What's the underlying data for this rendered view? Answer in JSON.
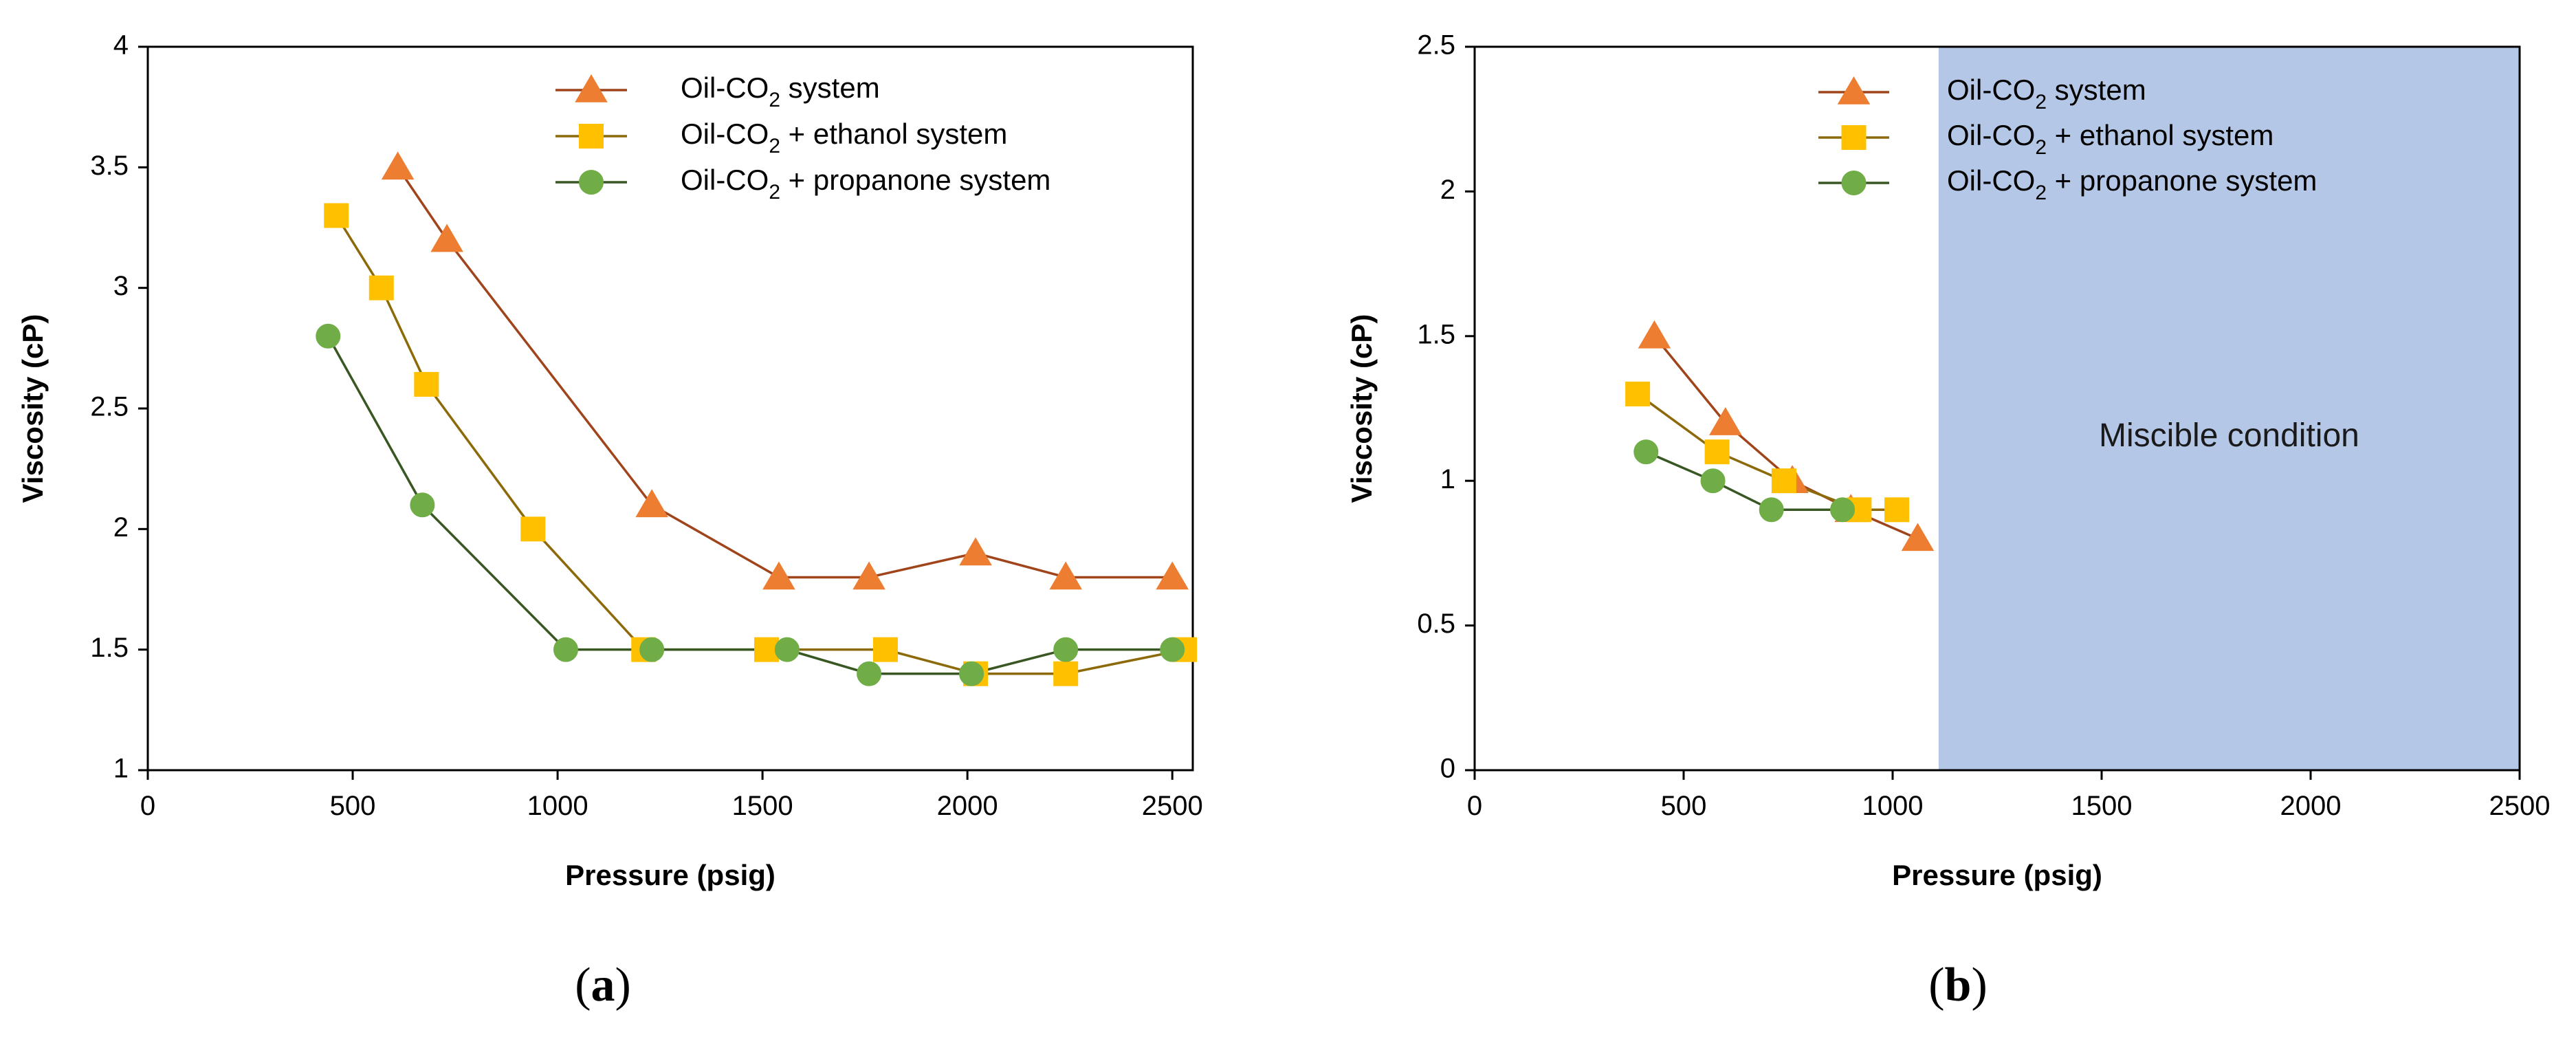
{
  "colors": {
    "co2": "#ED7D31",
    "co2_line": "#A0441B",
    "ethanol": "#FFC000",
    "ethanol_line": "#8C6A0A",
    "propanone": "#70AD47",
    "propanone_line": "#385723",
    "miscible_region": "#B4C7E7"
  },
  "chart_data": [
    {
      "type": "line",
      "panel": "(a)",
      "xlabel": "Pressure (psig)",
      "ylabel": "Viscosity (cP)",
      "xlim": [
        0,
        2550
      ],
      "ylim": [
        1,
        4
      ],
      "xticks": [
        0,
        500,
        1000,
        1500,
        2000,
        2500
      ],
      "yticks": [
        1,
        1.5,
        2,
        2.5,
        3,
        3.5,
        4
      ],
      "ytick_labels": [
        "1",
        "1.5",
        "2",
        "2.5",
        "3",
        "3.5",
        "4"
      ],
      "legend_position": "top-right",
      "series": [
        {
          "key": "co2",
          "name_prefix": "Oil-CO",
          "name_sub": "2",
          "name_suffix": " system",
          "marker": "triangle",
          "x": [
            610,
            730,
            1230,
            1540,
            1760,
            2020,
            2240,
            2500
          ],
          "y": [
            3.5,
            3.2,
            2.1,
            1.8,
            1.8,
            1.9,
            1.8,
            1.8
          ]
        },
        {
          "key": "ethanol",
          "name_prefix": "Oil-CO",
          "name_sub": "2",
          "name_suffix": " + ethanol system",
          "marker": "square",
          "x": [
            460,
            570,
            680,
            940,
            1210,
            1510,
            1800,
            2020,
            2240,
            2530
          ],
          "y": [
            3.3,
            3.0,
            2.6,
            2.0,
            1.5,
            1.5,
            1.5,
            1.4,
            1.4,
            1.5
          ]
        },
        {
          "key": "propanone",
          "name_prefix": "Oil-CO",
          "name_sub": "2",
          "name_suffix": " + propanone system",
          "marker": "circle",
          "x": [
            440,
            670,
            1020,
            1230,
            1560,
            1760,
            2010,
            2240,
            2500
          ],
          "y": [
            2.8,
            2.1,
            1.5,
            1.5,
            1.5,
            1.4,
            1.4,
            1.5,
            1.5
          ]
        }
      ]
    },
    {
      "type": "line",
      "panel": "(b)",
      "xlabel": "Pressure (psig)",
      "ylabel": "Viscosity (cP)",
      "xlim": [
        0,
        2500
      ],
      "ylim": [
        0,
        2.5
      ],
      "xticks": [
        0,
        500,
        1000,
        1500,
        2000,
        2500
      ],
      "yticks": [
        0,
        0.5,
        1,
        1.5,
        2,
        2.5
      ],
      "ytick_labels": [
        "0",
        "0.5",
        "1",
        "1.5",
        "2",
        "2.5"
      ],
      "legend_position": "top-center",
      "shaded_region": {
        "x_from": 1110,
        "x_to": 2500,
        "label": "Miscible condition"
      },
      "series": [
        {
          "key": "co2",
          "name_prefix": "Oil-CO",
          "name_sub": "2",
          "name_suffix": " system",
          "marker": "triangle",
          "x": [
            430,
            600,
            760,
            900,
            1060
          ],
          "y": [
            1.5,
            1.2,
            1.0,
            0.9,
            0.8
          ]
        },
        {
          "key": "ethanol",
          "name_prefix": "Oil-CO",
          "name_sub": "2",
          "name_suffix": " + ethanol system",
          "marker": "square",
          "x": [
            390,
            580,
            740,
            920,
            1010
          ],
          "y": [
            1.3,
            1.1,
            1.0,
            0.9,
            0.9
          ]
        },
        {
          "key": "propanone",
          "name_prefix": "Oil-CO",
          "name_sub": "2",
          "name_suffix": " + propanone system",
          "marker": "circle",
          "x": [
            410,
            570,
            710,
            880
          ],
          "y": [
            1.1,
            1.0,
            0.9,
            0.9
          ]
        }
      ]
    }
  ]
}
